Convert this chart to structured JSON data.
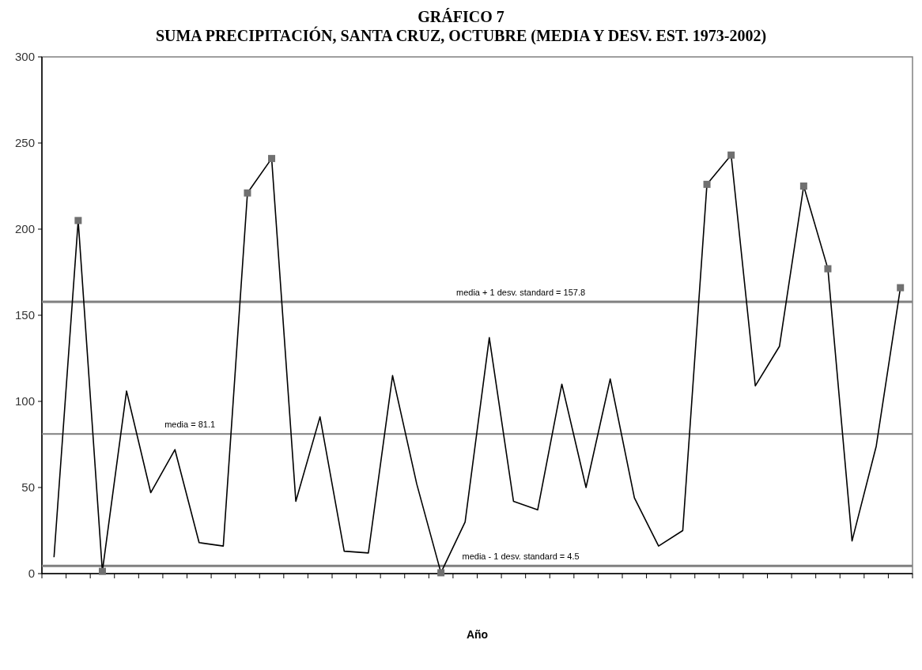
{
  "chart_data": {
    "type": "line",
    "title": "GRÁFICO 7",
    "subtitle": "SUMA PRECIPITACIÓN, SANTA CRUZ, OCTUBRE (MEDIA Y DESV. EST. 1973-2002)",
    "xlabel": "Año",
    "categories": [
      null,
      null,
      null,
      null,
      null,
      null,
      null,
      null,
      null,
      null,
      null,
      null,
      null,
      null,
      null,
      null,
      null,
      null,
      null,
      null,
      null,
      null,
      null,
      null,
      null,
      null,
      null,
      null,
      null,
      null,
      null,
      null,
      null,
      null,
      null,
      null
    ],
    "series": [
      {
        "color": "#000000",
        "marker": "none",
        "values": [
          9.5,
          205,
          1.3,
          106,
          47,
          72,
          18,
          16,
          221,
          241,
          42,
          91,
          13,
          12,
          115,
          52,
          0.5,
          30,
          137,
          42,
          37,
          110,
          50,
          113,
          44,
          16,
          25,
          226,
          243,
          109,
          132,
          225,
          177,
          19,
          74,
          166
        ]
      },
      {
        "type": "scatter",
        "color": "#707070",
        "marker": "square",
        "values": [
          null,
          205,
          1.3,
          null,
          null,
          null,
          null,
          null,
          221,
          241,
          null,
          null,
          null,
          null,
          null,
          null,
          0.5,
          null,
          null,
          null,
          null,
          null,
          null,
          null,
          null,
          null,
          null,
          226,
          243,
          null,
          null,
          225,
          177,
          null,
          null,
          166
        ]
      }
    ],
    "ylim": [
      0,
      300
    ],
    "yticks": [
      0,
      50,
      100,
      150,
      200,
      250,
      300
    ],
    "grid": false,
    "ref_lines": [
      {
        "axis": "y",
        "value": 157.8,
        "label": "media + 1 desv. standard = 157.8",
        "color": "#808080"
      },
      {
        "axis": "y",
        "value": 81.1,
        "label": "media = 81.1",
        "color": "#808080"
      },
      {
        "axis": "y",
        "value": 4.5,
        "label": "media - 1 desv. standard = 4.5",
        "color": "#808080"
      }
    ]
  }
}
